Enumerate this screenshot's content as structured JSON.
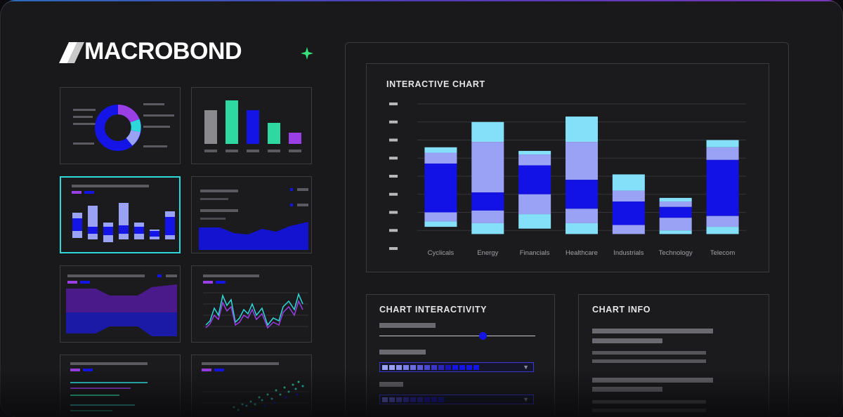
{
  "brand": {
    "name": "MACROBOND"
  },
  "colors": {
    "accent": "#2fd8d8",
    "blue": "#1212e6",
    "periwinkle": "#9aa2f6",
    "cyan": "#84e0f8",
    "purple": "#9a3ee6",
    "green": "#2fd8a0"
  },
  "main_chart": {
    "title": "INTERACTIVE CHART"
  },
  "chart_data": {
    "type": "bar",
    "stacked": true,
    "title": "INTERACTIVE CHART",
    "categories": [
      "Cyclicals",
      "Energy",
      "Financials",
      "Healthcare",
      "Industrials",
      "Technology",
      "Telecom"
    ],
    "y_tick_count": 9,
    "ylim": [
      0,
      8
    ],
    "grid": true,
    "bars": [
      {
        "top": 5.6,
        "bottom": 1.2,
        "bands": [
          [
            5.6,
            5.3,
            "cyan"
          ],
          [
            5.3,
            4.7,
            "periwinkle"
          ],
          [
            4.7,
            2.0,
            "blue"
          ],
          [
            2.0,
            1.5,
            "periwinkle"
          ],
          [
            1.5,
            1.2,
            "cyan"
          ]
        ]
      },
      {
        "top": 7.0,
        "bottom": 0.8,
        "bands": [
          [
            7.0,
            5.9,
            "cyan"
          ],
          [
            5.9,
            3.1,
            "periwinkle"
          ],
          [
            3.1,
            2.1,
            "blue"
          ],
          [
            2.1,
            1.4,
            "periwinkle"
          ],
          [
            1.4,
            0.8,
            "cyan"
          ]
        ]
      },
      {
        "top": 5.4,
        "bottom": 1.1,
        "bands": [
          [
            5.4,
            5.2,
            "cyan"
          ],
          [
            5.2,
            4.6,
            "periwinkle"
          ],
          [
            4.6,
            3.0,
            "blue"
          ],
          [
            3.0,
            1.9,
            "periwinkle"
          ],
          [
            1.9,
            1.1,
            "cyan"
          ]
        ]
      },
      {
        "top": 7.3,
        "bottom": 0.8,
        "bands": [
          [
            7.3,
            5.9,
            "cyan"
          ],
          [
            5.9,
            3.8,
            "periwinkle"
          ],
          [
            3.8,
            2.2,
            "blue"
          ],
          [
            2.2,
            1.4,
            "periwinkle"
          ],
          [
            1.4,
            0.8,
            "cyan"
          ]
        ]
      },
      {
        "top": 4.1,
        "bottom": 0.8,
        "bands": [
          [
            4.1,
            3.2,
            "cyan"
          ],
          [
            3.2,
            2.6,
            "periwinkle"
          ],
          [
            2.6,
            1.3,
            "blue"
          ],
          [
            1.3,
            0.8,
            "periwinkle"
          ]
        ]
      },
      {
        "top": 2.8,
        "bottom": 0.8,
        "bands": [
          [
            2.8,
            2.6,
            "cyan"
          ],
          [
            2.6,
            2.3,
            "periwinkle"
          ],
          [
            2.3,
            1.7,
            "blue"
          ],
          [
            1.7,
            1.0,
            "periwinkle"
          ],
          [
            1.0,
            0.8,
            "cyan"
          ]
        ]
      },
      {
        "top": 6.0,
        "bottom": 0.8,
        "bands": [
          [
            6.0,
            5.6,
            "cyan"
          ],
          [
            5.6,
            4.9,
            "periwinkle"
          ],
          [
            4.9,
            1.8,
            "blue"
          ],
          [
            1.8,
            1.2,
            "periwinkle"
          ],
          [
            1.2,
            0.8,
            "cyan"
          ]
        ]
      }
    ]
  },
  "interactivity": {
    "title": "CHART INTERACTIVITY",
    "slider_value": 0.66,
    "dropdown1_segments": 14,
    "dropdown2_segments": 9
  },
  "info": {
    "title": "CHART INFO"
  },
  "thumbnails": [
    {
      "name": "donut-chart-thumb"
    },
    {
      "name": "bar-chart-thumb"
    },
    {
      "name": "stacked-bar-thumb",
      "selected": true
    },
    {
      "name": "area-chart-thumb"
    },
    {
      "name": "band-chart-thumb"
    },
    {
      "name": "line-chart-thumb"
    },
    {
      "name": "line-list-thumb"
    },
    {
      "name": "scatter-chart-thumb"
    }
  ],
  "icons": {
    "sparkle": "sparkle-icon",
    "chevron": "chevron-down-icon"
  }
}
